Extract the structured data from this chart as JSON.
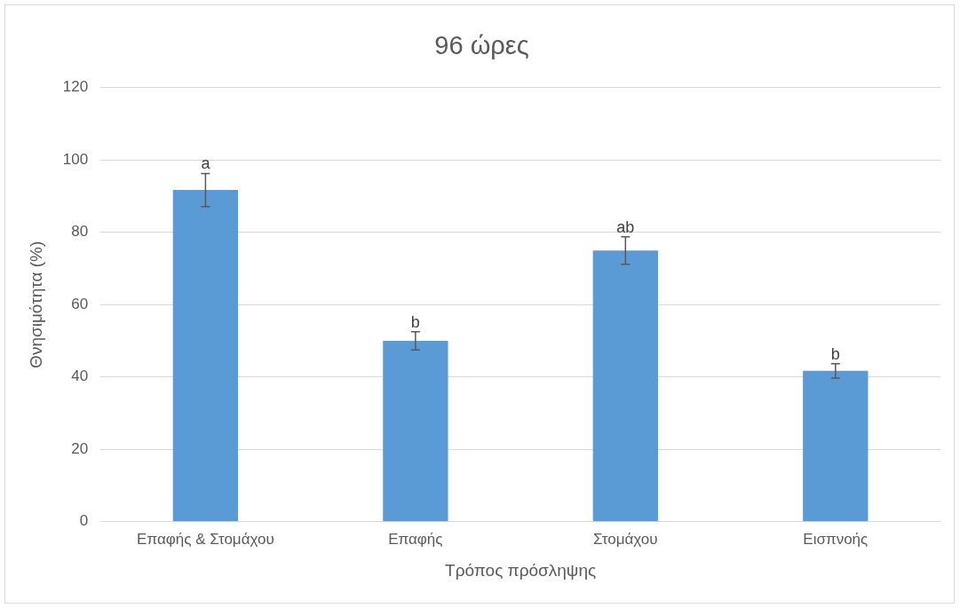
{
  "chart_data": {
    "type": "bar",
    "title": "96 ώρες",
    "xlabel": "Τρόπος πρόσληψης",
    "ylabel": "Θνησιμότητα (%)",
    "categories": [
      "Επαφής & Στομάχου",
      "Επαφής",
      "Στομάχου",
      "Εισπνοής"
    ],
    "values": [
      91.7,
      50,
      75,
      41.7
    ],
    "errors": [
      4.6,
      2.5,
      3.8,
      2
    ],
    "color": "#5b9bd5",
    "ylim": [
      0,
      120
    ],
    "yticks": [
      0,
      20,
      40,
      60,
      80,
      100,
      120
    ],
    "grid": "y",
    "legend": false,
    "annotations": [
      {
        "text": "a",
        "x": "Επαφής & Στομάχου",
        "y": 96.3
      },
      {
        "text": "b",
        "x": "Επαφής",
        "y": 52.5
      },
      {
        "text": "ab",
        "x": "Στομάχου",
        "y": 78.8
      },
      {
        "text": "b",
        "x": "Εισπνοής",
        "y": 43.7
      }
    ]
  }
}
